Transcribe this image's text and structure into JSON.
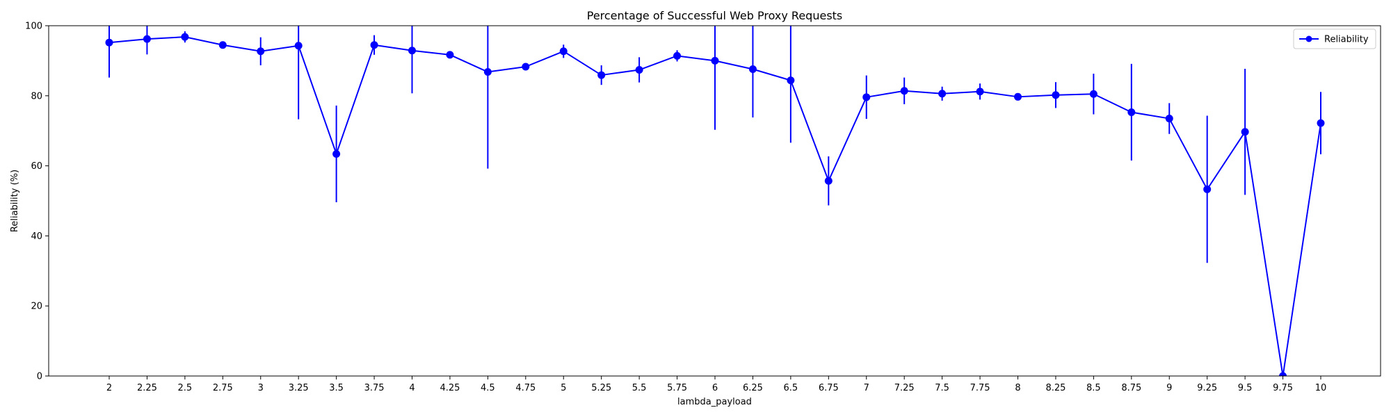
{
  "chart_data": {
    "type": "line",
    "title": "Percentage of Successful Web Proxy Requests",
    "xlabel": "lambda_payload",
    "ylabel": "Reliability (%)",
    "categories": [
      "2",
      "2.25",
      "2.5",
      "2.75",
      "3",
      "3.25",
      "3.5",
      "3.75",
      "4",
      "4.25",
      "4.5",
      "4.75",
      "5",
      "5.25",
      "5.5",
      "5.75",
      "6",
      "6.25",
      "6.5",
      "6.75",
      "7",
      "7.25",
      "7.5",
      "7.75",
      "8",
      "8.25",
      "8.5",
      "8.75",
      "9",
      "9.25",
      "9.5",
      "9.75",
      "10"
    ],
    "series": [
      {
        "name": "Reliability",
        "color": "#0000ff",
        "values": [
          95.2,
          96.2,
          96.8,
          94.5,
          92.7,
          94.3,
          63.4,
          94.5,
          92.9,
          91.7,
          86.8,
          88.3,
          92.7,
          85.9,
          87.4,
          91.4,
          90.0,
          87.6,
          84.4,
          55.7,
          79.6,
          81.4,
          80.6,
          81.2,
          79.7,
          80.2,
          80.5,
          75.3,
          73.5,
          53.3,
          69.7,
          0.0,
          72.2
        ],
        "error": [
          10.0,
          4.4,
          1.6,
          0.5,
          4.0,
          21.0,
          13.8,
          2.8,
          12.2,
          1.0,
          27.6,
          0.6,
          1.9,
          2.8,
          3.6,
          1.6,
          19.7,
          13.8,
          17.8,
          7.0,
          6.2,
          3.8,
          2.0,
          2.3,
          0.8,
          3.7,
          5.8,
          13.8,
          4.4,
          21.0,
          18.0,
          0.5,
          8.9
        ]
      }
    ],
    "ylim": [
      0,
      100
    ],
    "yticks": [
      "0",
      "20",
      "40",
      "60",
      "80",
      "100"
    ],
    "legend": "top-right",
    "grid": false
  }
}
